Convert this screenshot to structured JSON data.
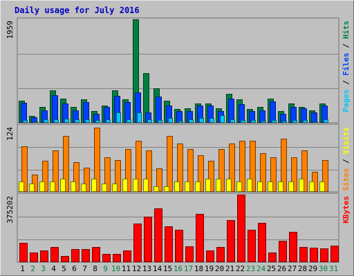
{
  "title": "Daily usage for July 2016",
  "colors": {
    "hits": "#008040",
    "files": "#0040ff",
    "pages": "#00c8ff",
    "visits": "#ff8000",
    "sites": "#ffff00",
    "kbytes": "#ff0000",
    "weekday_label": "#000000",
    "weekend_label": "#008040",
    "slash": "#000000"
  },
  "chart_data": [
    {
      "type": "bar",
      "panel": "hits-files-pages",
      "ymax_label": "1959",
      "ylim": [
        0,
        1959
      ],
      "right_label": [
        {
          "text": "Pages",
          "color_key": "pages"
        },
        {
          "text": " / ",
          "color_key": "slash"
        },
        {
          "text": "Files",
          "color_key": "files"
        },
        {
          "text": " / ",
          "color_key": "slash"
        },
        {
          "text": "Hits",
          "color_key": "hits"
        }
      ],
      "series": [
        {
          "name": "Hits",
          "color_key": "hits",
          "values": [
            420,
            130,
            300,
            610,
            460,
            300,
            440,
            220,
            330,
            620,
            440,
            1959,
            940,
            650,
            420,
            260,
            270,
            370,
            370,
            270,
            550,
            440,
            260,
            300,
            460,
            220,
            370,
            300,
            230,
            370,
            0
          ]
        },
        {
          "name": "Files",
          "color_key": "files",
          "values": [
            380,
            100,
            240,
            520,
            370,
            240,
            390,
            170,
            300,
            510,
            390,
            580,
            200,
            500,
            320,
            220,
            220,
            330,
            320,
            220,
            460,
            350,
            220,
            230,
            410,
            170,
            300,
            270,
            200,
            330,
            0
          ]
        },
        {
          "name": "Pages",
          "color_key": "pages",
          "values": [
            50,
            30,
            60,
            60,
            80,
            70,
            60,
            50,
            70,
            190,
            70,
            190,
            60,
            50,
            90,
            40,
            60,
            90,
            90,
            150,
            70,
            50,
            50,
            40,
            50,
            40,
            50,
            50,
            30,
            60,
            0
          ]
        }
      ]
    },
    {
      "type": "bar",
      "panel": "visits-sites",
      "ymax_label": "124",
      "ylim": [
        0,
        124
      ],
      "right_label": [
        {
          "text": "Sites",
          "color_key": "visits"
        },
        {
          "text": " / ",
          "color_key": "slash"
        },
        {
          "text": "Visits",
          "color_key": "sites"
        }
      ],
      "series": [
        {
          "name": "Visits",
          "color_key": "visits",
          "values": [
            85,
            32,
            58,
            78,
            105,
            55,
            45,
            120,
            65,
            60,
            80,
            95,
            78,
            44,
            105,
            90,
            80,
            68,
            58,
            80,
            90,
            95,
            95,
            72,
            65,
            100,
            65,
            77,
            38,
            60,
            0
          ]
        },
        {
          "name": "Sites",
          "color_key": "sites",
          "values": [
            20,
            15,
            20,
            20,
            25,
            20,
            15,
            25,
            15,
            15,
            25,
            25,
            25,
            10,
            10,
            20,
            20,
            20,
            25,
            25,
            25,
            20,
            25,
            20,
            20,
            20,
            20,
            25,
            20,
            20,
            0
          ]
        }
      ]
    },
    {
      "type": "bar",
      "panel": "kbytes",
      "ymax_label": "375202",
      "ylim": [
        0,
        375202
      ],
      "right_label": [
        {
          "text": "KBytes",
          "color_key": "kbytes"
        }
      ],
      "series": [
        {
          "name": "KBytes",
          "color_key": "kbytes",
          "values": [
            108000,
            55000,
            66000,
            85000,
            36000,
            74000,
            74000,
            83000,
            47000,
            47000,
            66000,
            216000,
            254000,
            297000,
            200000,
            180000,
            88000,
            269000,
            65000,
            85000,
            235000,
            375202,
            180000,
            220000,
            53000,
            119000,
            170000,
            85000,
            80000,
            75000,
            92000
          ]
        }
      ]
    }
  ],
  "x_labels": [
    "1",
    "2",
    "3",
    "4",
    "5",
    "6",
    "7",
    "8",
    "9",
    "10",
    "11",
    "12",
    "13",
    "14",
    "15",
    "16",
    "17",
    "18",
    "19",
    "20",
    "21",
    "22",
    "23",
    "24",
    "25",
    "26",
    "27",
    "28",
    "29",
    "30",
    "31"
  ],
  "weekend_days": [
    2,
    3,
    9,
    10,
    16,
    17,
    23,
    24,
    30,
    31
  ]
}
